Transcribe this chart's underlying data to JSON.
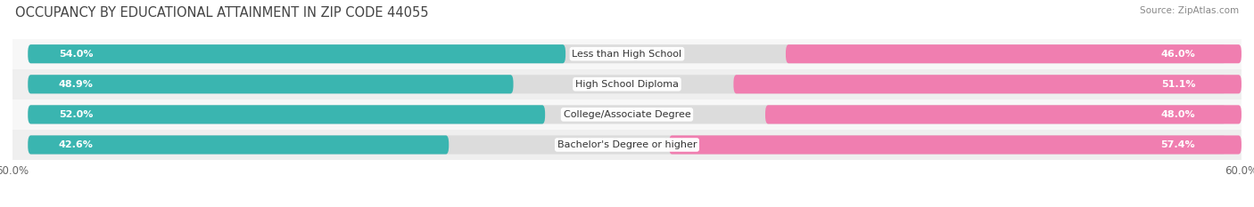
{
  "title": "OCCUPANCY BY EDUCATIONAL ATTAINMENT IN ZIP CODE 44055",
  "source": "Source: ZipAtlas.com",
  "categories": [
    "Less than High School",
    "High School Diploma",
    "College/Associate Degree",
    "Bachelor's Degree or higher"
  ],
  "owner_values": [
    54.0,
    48.9,
    52.0,
    42.6
  ],
  "renter_values": [
    46.0,
    51.1,
    48.0,
    57.4
  ],
  "owner_color": "#3ab5b0",
  "renter_color": "#f07eb0",
  "axis_max": 60.0,
  "bar_height": 0.62,
  "background_color": "#ffffff",
  "bar_bg_color": "#e8e8e8",
  "title_fontsize": 10.5,
  "source_fontsize": 7.5,
  "label_fontsize": 8,
  "category_fontsize": 8,
  "row_bg_colors": [
    "#f5f5f5",
    "#ebebeb",
    "#f5f5f5",
    "#ebebeb"
  ]
}
